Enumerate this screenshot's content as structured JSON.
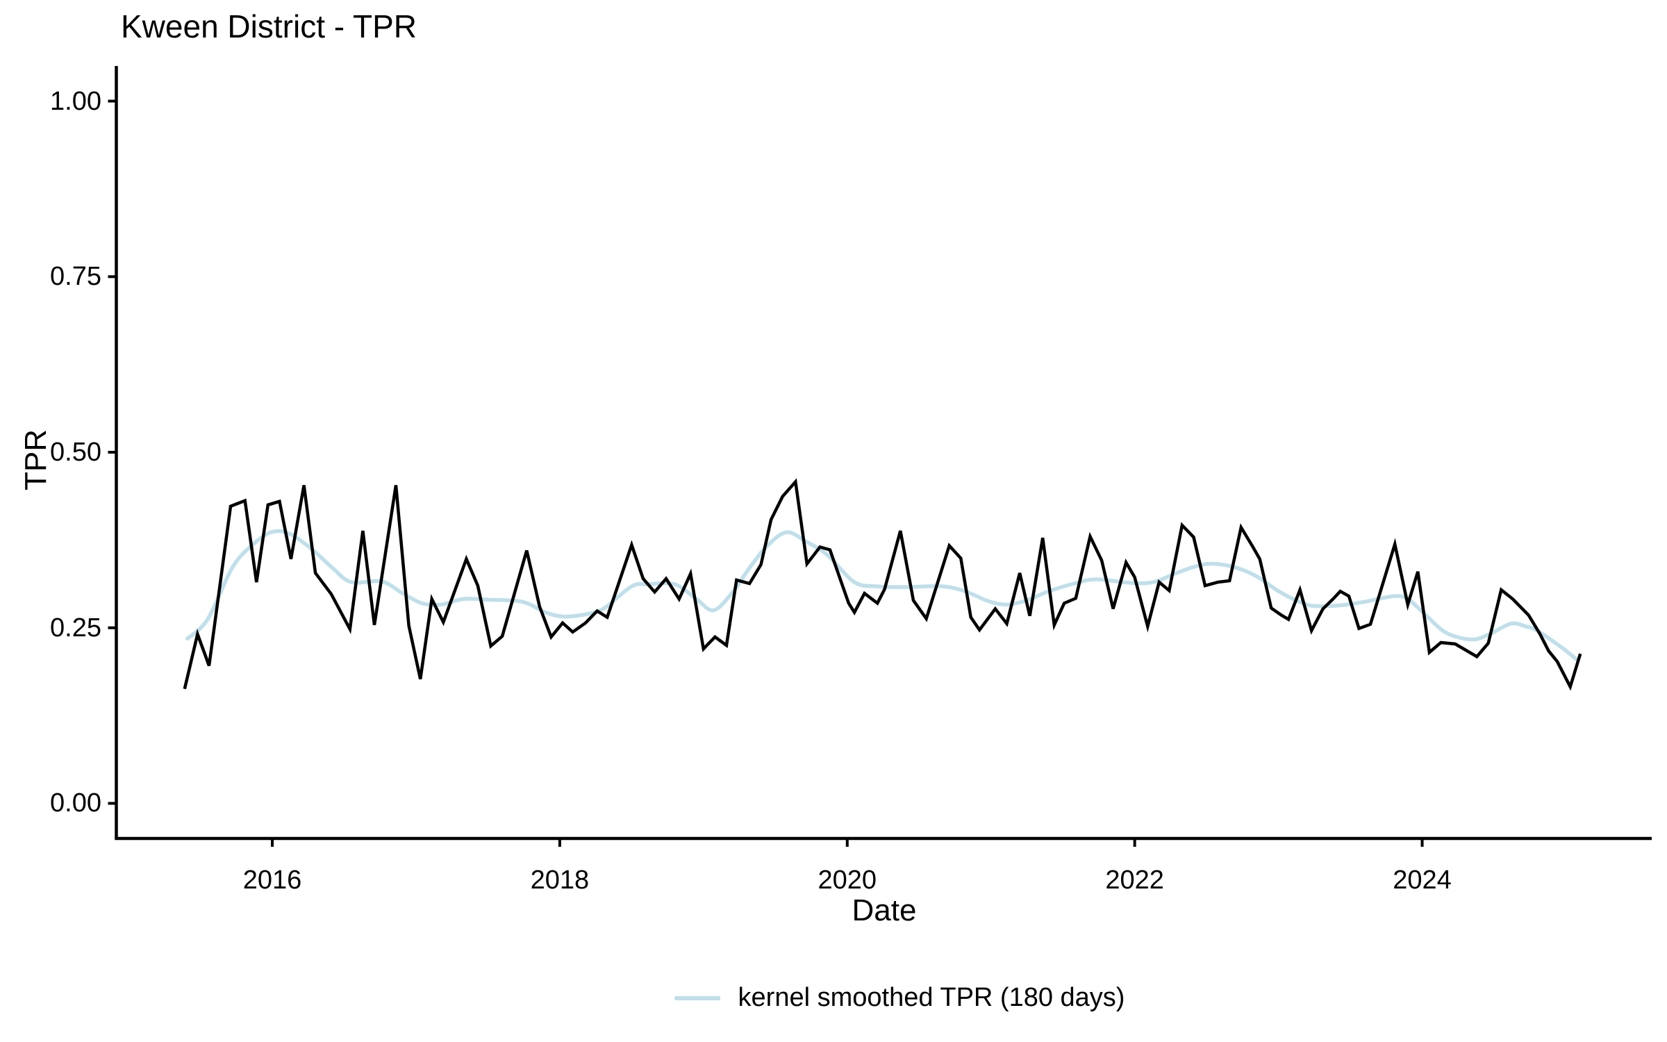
{
  "chart_data": {
    "type": "line",
    "title": "Kween District - TPR",
    "xlabel": "Date",
    "ylabel": "TPR",
    "x_ticks": [
      {
        "value": 2016,
        "label": "2016"
      },
      {
        "value": 2018,
        "label": "2018"
      },
      {
        "value": 2020,
        "label": "2020"
      },
      {
        "value": 2022,
        "label": "2022"
      },
      {
        "value": 2024,
        "label": "2024"
      }
    ],
    "y_ticks": [
      {
        "value": 0.0,
        "label": "0.00"
      },
      {
        "value": 0.25,
        "label": "0.25"
      },
      {
        "value": 0.5,
        "label": "0.50"
      },
      {
        "value": 0.75,
        "label": "0.75"
      },
      {
        "value": 1.0,
        "label": "1.00"
      }
    ],
    "xlim": [
      2014.915,
      2025.597
    ],
    "ylim": [
      -0.05,
      1.05
    ],
    "grid": false,
    "legend_position": "bottom",
    "colors": {
      "raw_line": "#000000",
      "smoothed_line": "#BFDFEA",
      "axis": "#000000",
      "background": "#FFFFFF"
    },
    "series": [
      {
        "name": "TPR",
        "color": "#000000",
        "width": 4.5,
        "smooth": false,
        "in_legend": false,
        "points": [
          [
            2015.39,
            0.163
          ],
          [
            2015.48,
            0.241
          ],
          [
            2015.56,
            0.196
          ],
          [
            2015.71,
            0.423
          ],
          [
            2015.81,
            0.431
          ],
          [
            2015.89,
            0.315
          ],
          [
            2015.97,
            0.425
          ],
          [
            2016.05,
            0.43
          ],
          [
            2016.13,
            0.348
          ],
          [
            2016.22,
            0.453
          ],
          [
            2016.3,
            0.328
          ],
          [
            2016.41,
            0.298
          ],
          [
            2016.54,
            0.248
          ],
          [
            2016.63,
            0.388
          ],
          [
            2016.71,
            0.254
          ],
          [
            2016.86,
            0.453
          ],
          [
            2016.95,
            0.253
          ],
          [
            2017.03,
            0.177
          ],
          [
            2017.11,
            0.291
          ],
          [
            2017.19,
            0.258
          ],
          [
            2017.35,
            0.348
          ],
          [
            2017.43,
            0.31
          ],
          [
            2017.52,
            0.224
          ],
          [
            2017.6,
            0.238
          ],
          [
            2017.77,
            0.36
          ],
          [
            2017.86,
            0.28
          ],
          [
            2017.94,
            0.237
          ],
          [
            2018.02,
            0.257
          ],
          [
            2018.09,
            0.244
          ],
          [
            2018.18,
            0.257
          ],
          [
            2018.26,
            0.274
          ],
          [
            2018.33,
            0.265
          ],
          [
            2018.5,
            0.368
          ],
          [
            2018.58,
            0.32
          ],
          [
            2018.66,
            0.301
          ],
          [
            2018.74,
            0.32
          ],
          [
            2018.83,
            0.291
          ],
          [
            2018.91,
            0.327
          ],
          [
            2019.0,
            0.22
          ],
          [
            2019.08,
            0.237
          ],
          [
            2019.16,
            0.225
          ],
          [
            2019.23,
            0.318
          ],
          [
            2019.32,
            0.313
          ],
          [
            2019.4,
            0.34
          ],
          [
            2019.47,
            0.404
          ],
          [
            2019.55,
            0.437
          ],
          [
            2019.64,
            0.458
          ],
          [
            2019.72,
            0.341
          ],
          [
            2019.81,
            0.365
          ],
          [
            2019.88,
            0.361
          ],
          [
            2020.01,
            0.285
          ],
          [
            2020.05,
            0.272
          ],
          [
            2020.12,
            0.299
          ],
          [
            2020.21,
            0.285
          ],
          [
            2020.26,
            0.305
          ],
          [
            2020.37,
            0.388
          ],
          [
            2020.46,
            0.289
          ],
          [
            2020.55,
            0.263
          ],
          [
            2020.71,
            0.367
          ],
          [
            2020.79,
            0.349
          ],
          [
            2020.86,
            0.265
          ],
          [
            2020.92,
            0.247
          ],
          [
            2021.03,
            0.277
          ],
          [
            2021.11,
            0.256
          ],
          [
            2021.2,
            0.328
          ],
          [
            2021.27,
            0.267
          ],
          [
            2021.36,
            0.378
          ],
          [
            2021.44,
            0.254
          ],
          [
            2021.51,
            0.285
          ],
          [
            2021.59,
            0.292
          ],
          [
            2021.69,
            0.38
          ],
          [
            2021.77,
            0.346
          ],
          [
            2021.85,
            0.277
          ],
          [
            2021.94,
            0.343
          ],
          [
            2022.0,
            0.322
          ],
          [
            2022.09,
            0.252
          ],
          [
            2022.17,
            0.315
          ],
          [
            2022.24,
            0.303
          ],
          [
            2022.33,
            0.396
          ],
          [
            2022.41,
            0.379
          ],
          [
            2022.49,
            0.31
          ],
          [
            2022.58,
            0.315
          ],
          [
            2022.66,
            0.317
          ],
          [
            2022.74,
            0.393
          ],
          [
            2022.82,
            0.366
          ],
          [
            2022.87,
            0.348
          ],
          [
            2022.95,
            0.278
          ],
          [
            2023.02,
            0.268
          ],
          [
            2023.07,
            0.262
          ],
          [
            2023.15,
            0.304
          ],
          [
            2023.23,
            0.246
          ],
          [
            2023.31,
            0.277
          ],
          [
            2023.38,
            0.291
          ],
          [
            2023.43,
            0.302
          ],
          [
            2023.49,
            0.295
          ],
          [
            2023.56,
            0.249
          ],
          [
            2023.64,
            0.255
          ],
          [
            2023.81,
            0.369
          ],
          [
            2023.9,
            0.283
          ],
          [
            2023.97,
            0.33
          ],
          [
            2024.05,
            0.215
          ],
          [
            2024.13,
            0.229
          ],
          [
            2024.23,
            0.227
          ],
          [
            2024.38,
            0.209
          ],
          [
            2024.46,
            0.228
          ],
          [
            2024.55,
            0.304
          ],
          [
            2024.63,
            0.291
          ],
          [
            2024.74,
            0.268
          ],
          [
            2024.82,
            0.241
          ],
          [
            2024.88,
            0.217
          ],
          [
            2024.94,
            0.202
          ],
          [
            2025.03,
            0.166
          ],
          [
            2025.1,
            0.213
          ]
        ]
      },
      {
        "name": "kernel smoothed TPR (180 days)",
        "color": "#BFDFEA",
        "width": 5.5,
        "smooth": true,
        "in_legend": true,
        "points": [
          [
            2015.4,
            0.233
          ],
          [
            2015.55,
            0.262
          ],
          [
            2015.72,
            0.335
          ],
          [
            2015.85,
            0.366
          ],
          [
            2015.99,
            0.386
          ],
          [
            2016.12,
            0.384
          ],
          [
            2016.28,
            0.361
          ],
          [
            2016.42,
            0.335
          ],
          [
            2016.55,
            0.315
          ],
          [
            2016.76,
            0.316
          ],
          [
            2016.9,
            0.3
          ],
          [
            2017.04,
            0.285
          ],
          [
            2017.17,
            0.283
          ],
          [
            2017.33,
            0.291
          ],
          [
            2017.5,
            0.29
          ],
          [
            2017.74,
            0.287
          ],
          [
            2017.9,
            0.272
          ],
          [
            2018.03,
            0.266
          ],
          [
            2018.2,
            0.27
          ],
          [
            2018.31,
            0.278
          ],
          [
            2018.5,
            0.309
          ],
          [
            2018.61,
            0.312
          ],
          [
            2018.8,
            0.312
          ],
          [
            2018.95,
            0.291
          ],
          [
            2019.07,
            0.275
          ],
          [
            2019.2,
            0.3
          ],
          [
            2019.33,
            0.338
          ],
          [
            2019.45,
            0.368
          ],
          [
            2019.58,
            0.386
          ],
          [
            2019.72,
            0.372
          ],
          [
            2019.86,
            0.354
          ],
          [
            2020.05,
            0.315
          ],
          [
            2020.21,
            0.309
          ],
          [
            2020.4,
            0.308
          ],
          [
            2020.66,
            0.309
          ],
          [
            2020.82,
            0.302
          ],
          [
            2020.98,
            0.288
          ],
          [
            2021.11,
            0.283
          ],
          [
            2021.25,
            0.289
          ],
          [
            2021.4,
            0.302
          ],
          [
            2021.58,
            0.313
          ],
          [
            2021.73,
            0.319
          ],
          [
            2021.97,
            0.314
          ],
          [
            2022.13,
            0.315
          ],
          [
            2022.29,
            0.328
          ],
          [
            2022.45,
            0.339
          ],
          [
            2022.56,
            0.341
          ],
          [
            2022.7,
            0.336
          ],
          [
            2022.85,
            0.323
          ],
          [
            2023.01,
            0.301
          ],
          [
            2023.17,
            0.285
          ],
          [
            2023.26,
            0.281
          ],
          [
            2023.43,
            0.282
          ],
          [
            2023.6,
            0.287
          ],
          [
            2023.8,
            0.295
          ],
          [
            2023.9,
            0.291
          ],
          [
            2024.01,
            0.271
          ],
          [
            2024.15,
            0.245
          ],
          [
            2024.28,
            0.235
          ],
          [
            2024.38,
            0.234
          ],
          [
            2024.48,
            0.242
          ],
          [
            2024.62,
            0.256
          ],
          [
            2024.72,
            0.252
          ],
          [
            2024.8,
            0.246
          ],
          [
            2024.97,
            0.222
          ],
          [
            2025.08,
            0.204
          ]
        ]
      }
    ]
  }
}
